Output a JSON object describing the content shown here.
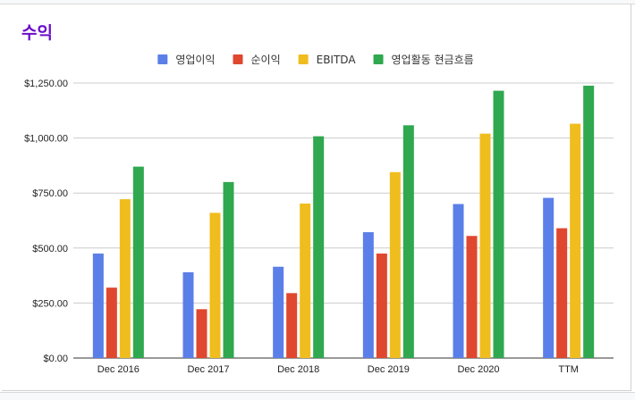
{
  "chart_data": {
    "type": "bar",
    "title": "수익",
    "xlabel": "",
    "ylabel": "",
    "categories": [
      "Dec 2016",
      "Dec 2017",
      "Dec 2018",
      "Dec 2019",
      "Dec 2020",
      "TTM"
    ],
    "ylim": [
      0,
      1250
    ],
    "yticks": [
      0,
      250,
      500,
      750,
      1000,
      1250
    ],
    "ytick_labels": [
      "$0.00",
      "$250.00",
      "$500.00",
      "$750.00",
      "$1,000.00",
      "$1,250.00"
    ],
    "grid": true,
    "legend_position": "top",
    "series": [
      {
        "name": "영업이익",
        "color": "#5b7fe8",
        "values": [
          475,
          390,
          415,
          572,
          700,
          728
        ]
      },
      {
        "name": "순이익",
        "color": "#e0472f",
        "values": [
          320,
          222,
          295,
          475,
          555,
          590
        ]
      },
      {
        "name": "EBITDA",
        "color": "#f0bd1f",
        "values": [
          722,
          660,
          702,
          845,
          1020,
          1065
        ]
      },
      {
        "name": "영업활동 현금흐름",
        "color": "#2fa84f",
        "values": [
          870,
          800,
          1008,
          1058,
          1215,
          1238
        ]
      }
    ]
  }
}
